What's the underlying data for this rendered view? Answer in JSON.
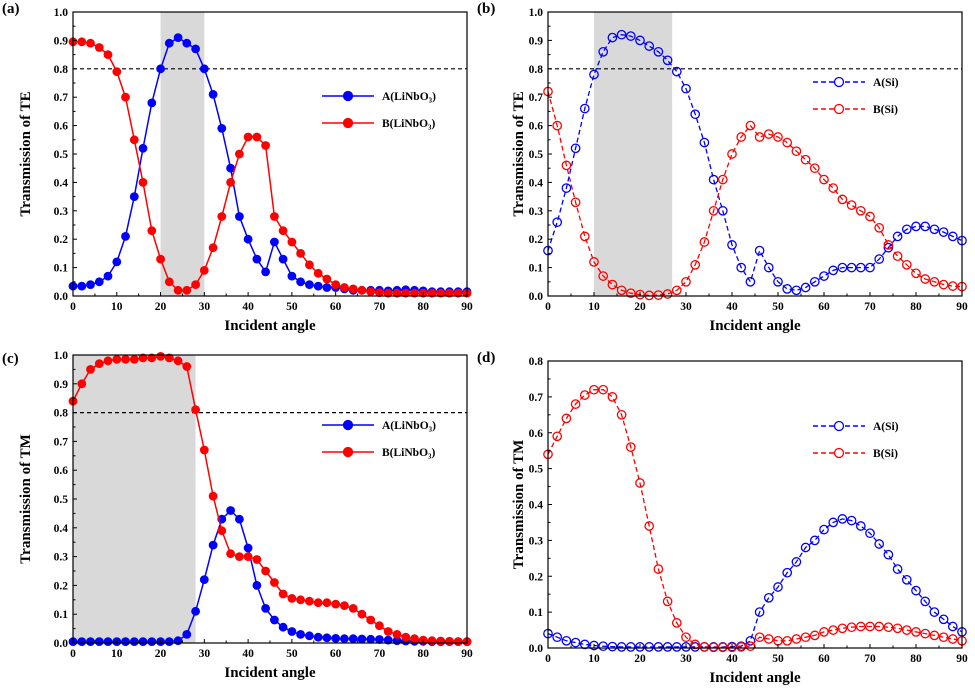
{
  "colors": {
    "series_a": "#0000ff",
    "series_b": "#ff0000",
    "shade": "#d9d9d9"
  },
  "chart_data": [
    {
      "panel_label": "(a)",
      "type": "line",
      "style": "filled",
      "xlabel": "Incident angle",
      "ylabel": "Transmission of TE",
      "xlim": [
        0,
        90
      ],
      "ylim": [
        0,
        1.0
      ],
      "xticks": [
        "0",
        "10",
        "20",
        "30",
        "40",
        "50",
        "60",
        "70",
        "80",
        "90"
      ],
      "yticks": [
        "0.0",
        "0.1",
        "0.2",
        "0.3",
        "0.4",
        "0.5",
        "0.6",
        "0.7",
        "0.8",
        "0.9",
        "1.0"
      ],
      "threshold": 0.8,
      "shade_range": [
        20,
        30
      ],
      "legend": {
        "position": "right",
        "entries": [
          "A(LiNbO₃)",
          "B(LiNbO₃)"
        ]
      },
      "series": [
        {
          "name": "A(LiNbO₃)",
          "color": "#0000ff",
          "x": [
            0,
            2,
            4,
            6,
            8,
            10,
            12,
            14,
            16,
            18,
            20,
            22,
            24,
            26,
            28,
            30,
            32,
            34,
            36,
            38,
            40,
            42,
            44,
            46,
            48,
            50,
            52,
            54,
            56,
            58,
            60,
            62,
            64,
            66,
            68,
            70,
            72,
            74,
            76,
            78,
            80,
            82,
            84,
            86,
            88,
            90
          ],
          "values": [
            0.035,
            0.035,
            0.04,
            0.05,
            0.07,
            0.12,
            0.21,
            0.35,
            0.52,
            0.68,
            0.8,
            0.89,
            0.91,
            0.89,
            0.87,
            0.8,
            0.71,
            0.59,
            0.45,
            0.28,
            0.2,
            0.13,
            0.085,
            0.19,
            0.13,
            0.07,
            0.05,
            0.04,
            0.035,
            0.03,
            0.03,
            0.025,
            0.02,
            0.02,
            0.02,
            0.02,
            0.018,
            0.02,
            0.022,
            0.02,
            0.018,
            0.015,
            0.015,
            0.015,
            0.015,
            0.015
          ]
        },
        {
          "name": "B(LiNbO₃)",
          "color": "#ff0000",
          "x": [
            0,
            2,
            4,
            6,
            8,
            10,
            12,
            14,
            16,
            18,
            20,
            22,
            24,
            26,
            28,
            30,
            32,
            34,
            36,
            38,
            40,
            42,
            44,
            46,
            48,
            50,
            52,
            54,
            56,
            58,
            60,
            62,
            64,
            66,
            68,
            70,
            72,
            74,
            76,
            78,
            80,
            82,
            84,
            86,
            88,
            90
          ],
          "values": [
            0.895,
            0.895,
            0.89,
            0.875,
            0.85,
            0.79,
            0.7,
            0.55,
            0.4,
            0.23,
            0.13,
            0.05,
            0.02,
            0.02,
            0.04,
            0.09,
            0.17,
            0.28,
            0.4,
            0.5,
            0.56,
            0.56,
            0.53,
            0.28,
            0.23,
            0.19,
            0.15,
            0.11,
            0.08,
            0.06,
            0.04,
            0.03,
            0.025,
            0.02,
            0.015,
            0.012,
            0.01,
            0.01,
            0.01,
            0.01,
            0.01,
            0.01,
            0.01,
            0.01,
            0.01,
            0.01
          ]
        }
      ]
    },
    {
      "panel_label": "(b)",
      "type": "line",
      "style": "open-dashed",
      "xlabel": "Incident angle",
      "ylabel": "Transmission of TE",
      "xlim": [
        0,
        90
      ],
      "ylim": [
        0,
        1.0
      ],
      "xticks": [
        "0",
        "10",
        "20",
        "30",
        "40",
        "50",
        "60",
        "70",
        "80",
        "90"
      ],
      "yticks": [
        "0.0",
        "0.1",
        "0.2",
        "0.3",
        "0.4",
        "0.5",
        "0.6",
        "0.7",
        "0.8",
        "0.9",
        "1.0"
      ],
      "threshold": 0.8,
      "shade_range": [
        10,
        27
      ],
      "legend": {
        "position": "right",
        "entries": [
          "A(Si)",
          "B(Si)"
        ]
      },
      "series": [
        {
          "name": "A(Si)",
          "color": "#0000ff",
          "x": [
            0,
            2,
            4,
            6,
            8,
            10,
            12,
            14,
            16,
            18,
            20,
            22,
            24,
            26,
            28,
            30,
            32,
            34,
            36,
            38,
            40,
            42,
            44,
            46,
            48,
            50,
            52,
            54,
            56,
            58,
            60,
            62,
            64,
            66,
            68,
            70,
            72,
            74,
            76,
            78,
            80,
            82,
            84,
            86,
            88,
            90
          ],
          "values": [
            0.16,
            0.26,
            0.38,
            0.52,
            0.66,
            0.78,
            0.86,
            0.91,
            0.92,
            0.915,
            0.9,
            0.88,
            0.86,
            0.83,
            0.79,
            0.73,
            0.64,
            0.54,
            0.41,
            0.3,
            0.18,
            0.1,
            0.05,
            0.16,
            0.1,
            0.05,
            0.025,
            0.02,
            0.03,
            0.05,
            0.07,
            0.09,
            0.1,
            0.1,
            0.1,
            0.1,
            0.13,
            0.17,
            0.21,
            0.235,
            0.245,
            0.245,
            0.235,
            0.225,
            0.21,
            0.195
          ]
        },
        {
          "name": "B(Si)",
          "color": "#ff0000",
          "x": [
            0,
            2,
            4,
            6,
            8,
            10,
            12,
            14,
            16,
            18,
            20,
            22,
            24,
            26,
            28,
            30,
            32,
            34,
            36,
            38,
            40,
            42,
            44,
            46,
            48,
            50,
            52,
            54,
            56,
            58,
            60,
            62,
            64,
            66,
            68,
            70,
            72,
            74,
            76,
            78,
            80,
            82,
            84,
            86,
            88,
            90
          ],
          "values": [
            0.72,
            0.6,
            0.46,
            0.33,
            0.21,
            0.12,
            0.07,
            0.04,
            0.02,
            0.01,
            0.005,
            0.002,
            0.003,
            0.007,
            0.02,
            0.05,
            0.11,
            0.19,
            0.3,
            0.41,
            0.5,
            0.56,
            0.6,
            0.56,
            0.57,
            0.56,
            0.54,
            0.51,
            0.48,
            0.45,
            0.41,
            0.38,
            0.34,
            0.32,
            0.3,
            0.28,
            0.24,
            0.18,
            0.14,
            0.11,
            0.08,
            0.06,
            0.05,
            0.04,
            0.035,
            0.033
          ]
        }
      ]
    },
    {
      "panel_label": "(c)",
      "type": "line",
      "style": "filled",
      "xlabel": "Incident angle",
      "ylabel": "Transmission of TM",
      "xlim": [
        0,
        90
      ],
      "ylim": [
        0,
        1.0
      ],
      "xticks": [
        "0",
        "10",
        "20",
        "30",
        "40",
        "50",
        "60",
        "70",
        "80",
        "90"
      ],
      "yticks": [
        "0.0",
        "0.1",
        "0.2",
        "0.3",
        "0.4",
        "0.5",
        "0.6",
        "0.7",
        "0.8",
        "0.9",
        "1.0"
      ],
      "threshold": 0.8,
      "shade_range": [
        0,
        28
      ],
      "legend": {
        "position": "right",
        "entries": [
          "A(LiNbO₃)",
          "B(LiNbO₃)"
        ]
      },
      "series": [
        {
          "name": "A(LiNbO₃)",
          "color": "#0000ff",
          "x": [
            0,
            2,
            4,
            6,
            8,
            10,
            12,
            14,
            16,
            18,
            20,
            22,
            24,
            26,
            28,
            30,
            32,
            34,
            36,
            38,
            40,
            42,
            44,
            46,
            48,
            50,
            52,
            54,
            56,
            58,
            60,
            62,
            64,
            66,
            68,
            70,
            72,
            74,
            76,
            78,
            80,
            82,
            84,
            86,
            88,
            90
          ],
          "values": [
            0.005,
            0.005,
            0.005,
            0.005,
            0.005,
            0.005,
            0.005,
            0.005,
            0.005,
            0.005,
            0.005,
            0.005,
            0.008,
            0.03,
            0.11,
            0.22,
            0.34,
            0.43,
            0.46,
            0.43,
            0.33,
            0.2,
            0.12,
            0.08,
            0.055,
            0.04,
            0.03,
            0.025,
            0.02,
            0.018,
            0.016,
            0.015,
            0.015,
            0.014,
            0.013,
            0.012,
            0.01,
            0.008,
            0.007,
            0.006,
            0.006,
            0.005,
            0.005,
            0.005,
            0.005,
            0.005
          ]
        },
        {
          "name": "B(LiNbO₃)",
          "color": "#ff0000",
          "x": [
            0,
            2,
            4,
            6,
            8,
            10,
            12,
            14,
            16,
            18,
            20,
            22,
            24,
            26,
            28,
            30,
            32,
            34,
            36,
            38,
            40,
            42,
            44,
            46,
            48,
            50,
            52,
            54,
            56,
            58,
            60,
            62,
            64,
            66,
            68,
            70,
            72,
            74,
            76,
            78,
            80,
            82,
            84,
            86,
            88,
            90
          ],
          "values": [
            0.84,
            0.9,
            0.95,
            0.97,
            0.98,
            0.985,
            0.985,
            0.985,
            0.99,
            0.99,
            0.995,
            0.99,
            0.98,
            0.96,
            0.81,
            0.67,
            0.51,
            0.39,
            0.31,
            0.3,
            0.3,
            0.29,
            0.25,
            0.21,
            0.17,
            0.155,
            0.15,
            0.145,
            0.14,
            0.14,
            0.135,
            0.13,
            0.12,
            0.1,
            0.08,
            0.06,
            0.04,
            0.03,
            0.02,
            0.015,
            0.01,
            0.008,
            0.007,
            0.006,
            0.005,
            0.005
          ]
        }
      ]
    },
    {
      "panel_label": "(d)",
      "type": "line",
      "style": "open-dashed",
      "xlabel": "Incident angle",
      "ylabel": "Transmission of TM",
      "xlim": [
        0,
        90
      ],
      "ylim": [
        0,
        0.8
      ],
      "xticks": [
        "0",
        "10",
        "20",
        "30",
        "40",
        "50",
        "60",
        "70",
        "80",
        "90"
      ],
      "yticks": [
        "0.0",
        "0.1",
        "0.2",
        "0.3",
        "0.4",
        "0.5",
        "0.6",
        "0.7",
        "0.8"
      ],
      "threshold": null,
      "shade_range": null,
      "legend": {
        "position": "top-right",
        "entries": [
          "A(Si)",
          "B(Si)"
        ]
      },
      "series": [
        {
          "name": "A(Si)",
          "color": "#0000ff",
          "x": [
            0,
            2,
            4,
            6,
            8,
            10,
            12,
            14,
            16,
            18,
            20,
            22,
            24,
            26,
            28,
            30,
            32,
            34,
            36,
            38,
            40,
            42,
            44,
            46,
            48,
            50,
            52,
            54,
            56,
            58,
            60,
            62,
            64,
            66,
            68,
            70,
            72,
            74,
            76,
            78,
            80,
            82,
            84,
            86,
            88,
            90
          ],
          "values": [
            0.04,
            0.03,
            0.02,
            0.015,
            0.01,
            0.007,
            0.005,
            0.004,
            0.003,
            0.003,
            0.003,
            0.003,
            0.003,
            0.003,
            0.003,
            0.003,
            0.003,
            0.003,
            0.003,
            0.003,
            0.004,
            0.005,
            0.02,
            0.1,
            0.14,
            0.17,
            0.21,
            0.24,
            0.28,
            0.3,
            0.33,
            0.35,
            0.36,
            0.355,
            0.34,
            0.32,
            0.29,
            0.26,
            0.22,
            0.19,
            0.16,
            0.13,
            0.1,
            0.08,
            0.06,
            0.045
          ]
        },
        {
          "name": "B(Si)",
          "color": "#ff0000",
          "x": [
            0,
            2,
            4,
            6,
            8,
            10,
            12,
            14,
            16,
            18,
            20,
            22,
            24,
            26,
            28,
            30,
            32,
            34,
            36,
            38,
            40,
            42,
            44,
            46,
            48,
            50,
            52,
            54,
            56,
            58,
            60,
            62,
            64,
            66,
            68,
            70,
            72,
            74,
            76,
            78,
            80,
            82,
            84,
            86,
            88,
            90
          ],
          "values": [
            0.54,
            0.59,
            0.64,
            0.68,
            0.705,
            0.72,
            0.72,
            0.7,
            0.65,
            0.56,
            0.46,
            0.34,
            0.22,
            0.13,
            0.07,
            0.03,
            0.01,
            0.003,
            0.002,
            0.002,
            0.002,
            0.003,
            0.005,
            0.03,
            0.025,
            0.02,
            0.02,
            0.025,
            0.03,
            0.035,
            0.045,
            0.05,
            0.055,
            0.058,
            0.06,
            0.06,
            0.06,
            0.058,
            0.055,
            0.05,
            0.045,
            0.04,
            0.035,
            0.03,
            0.025,
            0.02
          ]
        }
      ]
    }
  ]
}
